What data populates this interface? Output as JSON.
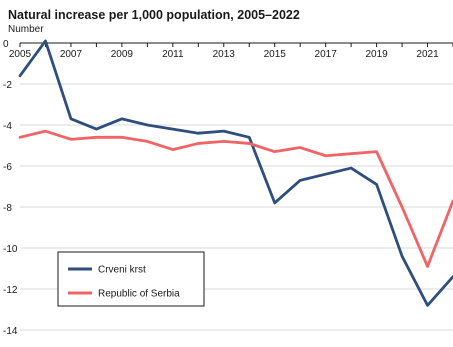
{
  "chart_data": {
    "type": "line",
    "title": "Natural increase per 1,000 population, 2005–2022",
    "subtitle": "Number",
    "x": [
      2005,
      2006,
      2007,
      2008,
      2009,
      2010,
      2011,
      2012,
      2013,
      2014,
      2015,
      2016,
      2017,
      2018,
      2019,
      2020,
      2021,
      2022
    ],
    "x_tick_labels": [
      "2005",
      "2007",
      "2009",
      "2011",
      "2013",
      "2015",
      "2017",
      "2019",
      "2021"
    ],
    "x_tick_values": [
      2005,
      2007,
      2009,
      2011,
      2013,
      2015,
      2017,
      2019,
      2021
    ],
    "ylim": [
      -14,
      0
    ],
    "y_ticks": [
      0,
      -2,
      -4,
      -6,
      -8,
      -10,
      -12,
      -14
    ],
    "y_tick_labels": [
      "0",
      "-2",
      "-4",
      "-6",
      "-8",
      "-10",
      "-12",
      "-14"
    ],
    "grid": true,
    "legend_position": "bottom-left",
    "series": [
      {
        "name": "Crveni krst",
        "color": "#2e4e7e",
        "values": [
          -1.6,
          0.1,
          -3.7,
          -4.2,
          -3.7,
          -4.0,
          -4.2,
          -4.4,
          -4.3,
          -4.6,
          -7.8,
          -6.7,
          -6.4,
          -6.1,
          -6.9,
          -10.4,
          -12.8,
          -11.4
        ]
      },
      {
        "name": "Republic of Serbia",
        "color": "#f06466",
        "values": [
          -4.6,
          -4.3,
          -4.7,
          -4.6,
          -4.6,
          -4.8,
          -5.2,
          -4.9,
          -4.8,
          -4.9,
          -5.3,
          -5.1,
          -5.5,
          -5.4,
          -5.3,
          -8.0,
          -10.9,
          -7.7
        ]
      }
    ]
  }
}
